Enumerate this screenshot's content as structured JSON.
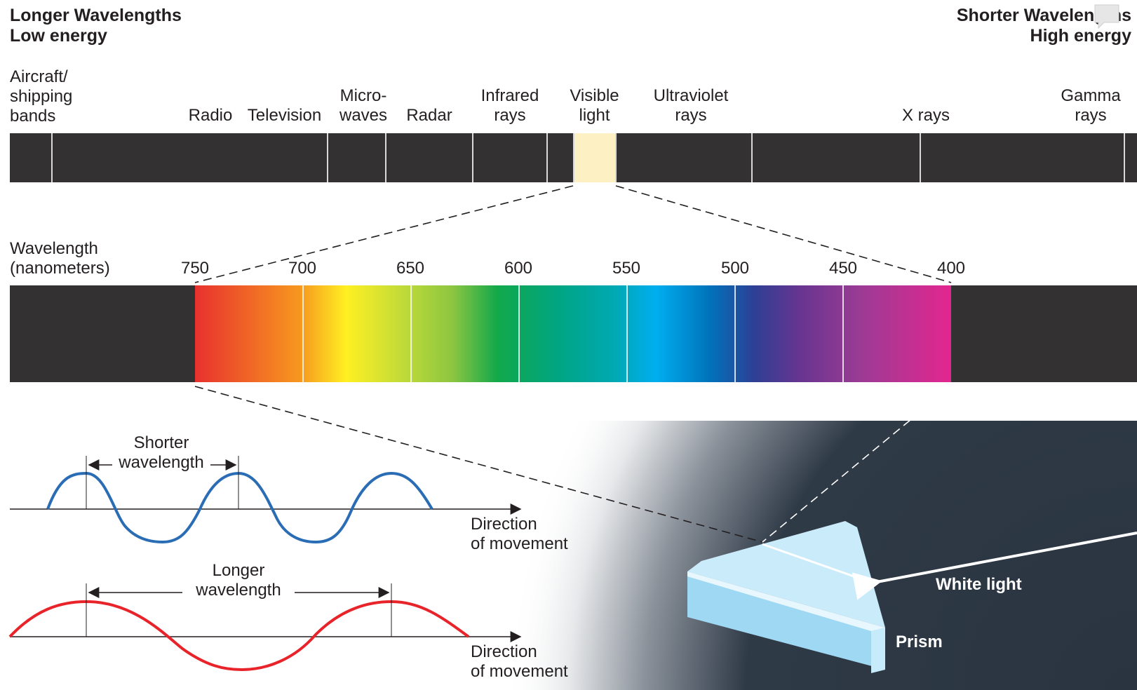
{
  "header": {
    "left_line1": "Longer Wavelengths",
    "left_line2": "Low energy",
    "right_line1": "Shorter Wavelengths",
    "right_line2": "High energy"
  },
  "bands": {
    "aircraft": [
      "Aircraft/",
      "shipping",
      "bands"
    ],
    "radio": "Radio",
    "television": "Television",
    "microwaves": [
      "Micro-",
      "waves"
    ],
    "radar": "Radar",
    "infrared": [
      "Infrared",
      "rays"
    ],
    "visible": [
      "Visible",
      "light"
    ],
    "ultraviolet": [
      "Ultraviolet",
      "rays"
    ],
    "xrays": "X rays",
    "gamma": [
      "Gamma",
      "rays"
    ]
  },
  "wavelength_axis": {
    "title": [
      "Wavelength",
      "(nanometers)"
    ],
    "ticks": [
      "750",
      "700",
      "650",
      "600",
      "550",
      "500",
      "450",
      "400"
    ]
  },
  "waves": {
    "shorter": [
      "Shorter",
      "wavelength"
    ],
    "longer": [
      "Longer",
      "wavelength"
    ],
    "direction": [
      "Direction",
      "of movement"
    ]
  },
  "prism": {
    "white_light": "White light",
    "prism": "Prism"
  },
  "colors": {
    "bar": "#333132",
    "visible_band": "#fdf1c4",
    "short_wave": "#2a6db5",
    "long_wave": "#e8232a",
    "background_dark": "#2a3440",
    "prism_light": "#a9dcf5"
  },
  "icons": {
    "comment": "speech-bubble-icon"
  }
}
